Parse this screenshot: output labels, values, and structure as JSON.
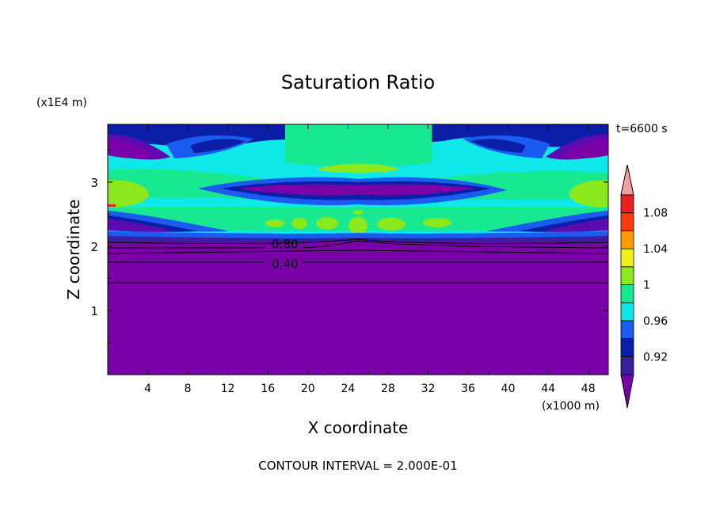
{
  "chart_data": {
    "type": "heatmap",
    "title": "Saturation Ratio",
    "xlabel": "X coordinate",
    "ylabel": "Z coordinate",
    "x_unit": "(x1000 m)",
    "y_unit": "(x1E4 m)",
    "time_label": "t=6600 s",
    "footer": "CONTOUR INTERVAL = 2.000E-01",
    "xlim": [
      0,
      50
    ],
    "ylim": [
      0,
      3.9
    ],
    "x_ticks": [
      4,
      8,
      12,
      16,
      20,
      24,
      28,
      32,
      36,
      40,
      44,
      48
    ],
    "x_tick_labels": [
      "4",
      "8",
      "12",
      "16",
      "20",
      "24",
      "28",
      "32",
      "36",
      "40",
      "44",
      "48"
    ],
    "y_ticks": [
      1,
      2,
      3
    ],
    "y_tick_labels": [
      "1",
      "2",
      "3"
    ],
    "contour_labels": [
      {
        "text": "0.80",
        "x": 17.7,
        "z": 2.03
      },
      {
        "text": "0.40",
        "x": 17.7,
        "z": 1.72
      }
    ],
    "colorbar": {
      "colors": [
        "#7a00a8",
        "#3c1fa0",
        "#0b1ea8",
        "#1a5cf0",
        "#0fe8e8",
        "#18e890",
        "#8ae81c",
        "#f0f01c",
        "#ff9a00",
        "#ff3a10",
        "#e82020",
        "#f5a0a0"
      ],
      "tick_labels": [
        "0.92",
        "0.96",
        "1",
        "1.04",
        "1.08"
      ],
      "tick_values": [
        0.92,
        0.96,
        1.0,
        1.04,
        1.08
      ]
    }
  }
}
